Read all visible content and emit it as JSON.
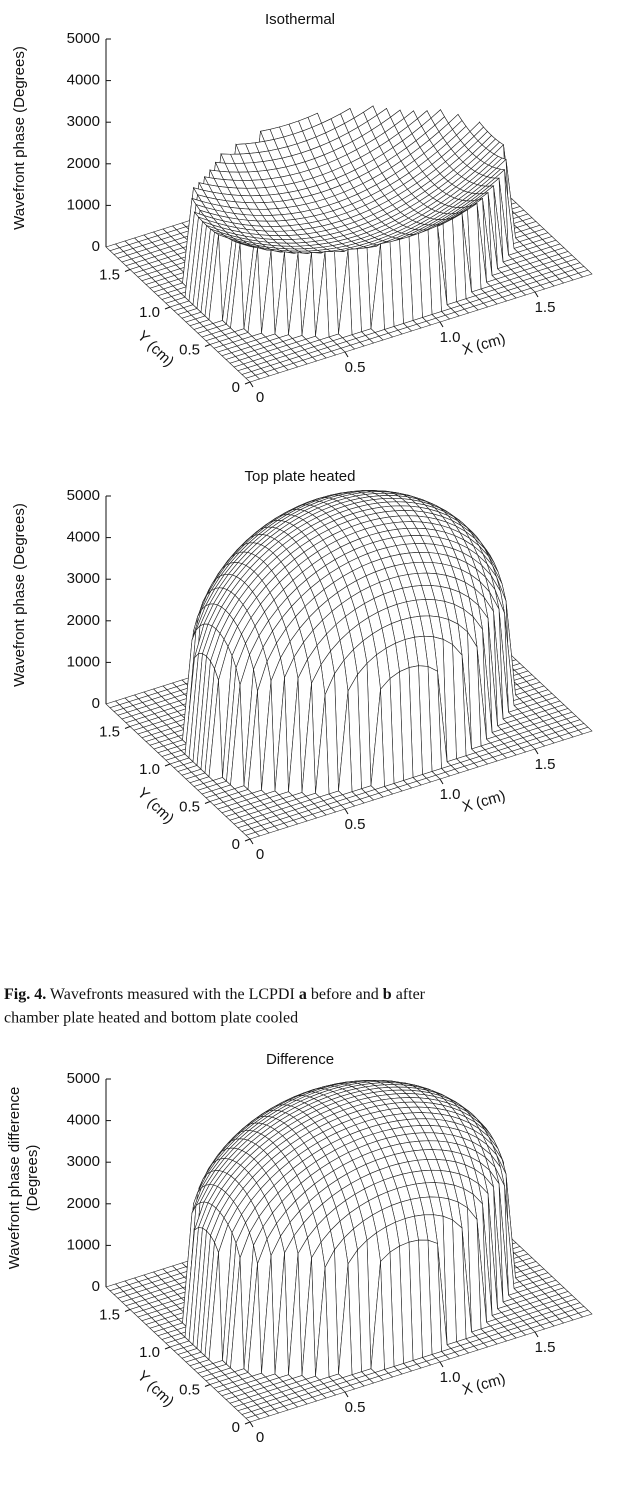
{
  "chart_data": [
    {
      "type": "surface3d",
      "title": "Isothermal",
      "zlabel": [
        "Wavefront phase (Degrees)"
      ],
      "xlabel": "X (cm)",
      "ylabel": "Y (cm)",
      "xlim": [
        0,
        1.8
      ],
      "ylim": [
        0,
        1.8
      ],
      "zlim": [
        0,
        5000
      ],
      "xticks": [
        0,
        0.5,
        {
          "value": 1,
          "label": "1.0"
        },
        1.5
      ],
      "yticks": [
        0,
        0.5,
        {
          "value": 1,
          "label": "1.0"
        },
        1.5
      ],
      "zticks": [
        0,
        1000,
        2000,
        3000,
        4000,
        5000
      ]
    },
    {
      "type": "surface3d",
      "title": "Top plate heated",
      "zlabel": [
        "Wavefront phase (Degrees)"
      ],
      "xlabel": "X (cm)",
      "ylabel": "Y (cm)",
      "xlim": [
        0,
        1.8
      ],
      "ylim": [
        0,
        1.8
      ],
      "zlim": [
        0,
        5000
      ],
      "xticks": [
        0,
        0.5,
        {
          "value": 1,
          "label": "1.0"
        },
        1.5
      ],
      "yticks": [
        0,
        0.5,
        {
          "value": 1,
          "label": "1.0"
        },
        1.5
      ],
      "zticks": [
        0,
        1000,
        2000,
        3000,
        4000,
        5000
      ]
    },
    {
      "type": "surface3d",
      "title": "Difference",
      "zlabel": [
        "Wavefront phase difference",
        "(Degrees)"
      ],
      "xlabel": "X (cm)",
      "ylabel": "Y (cm)",
      "xlim": [
        0,
        1.8
      ],
      "ylim": [
        0,
        1.8
      ],
      "zlim": [
        0,
        5000
      ],
      "xticks": [
        0,
        0.5,
        {
          "value": 1,
          "label": "1.0"
        },
        1.5
      ],
      "yticks": [
        0,
        0.5,
        {
          "value": 1,
          "label": "1.0"
        },
        1.5
      ],
      "zticks": [
        0,
        1000,
        2000,
        3000,
        4000,
        5000
      ]
    }
  ],
  "caption": {
    "line1": [
      "Fig. 4.",
      " Wavefronts measured with the LCPDI ",
      "a",
      " before and ",
      "b",
      " after"
    ],
    "line2": "chamber plate heated and bottom plate cooled"
  }
}
